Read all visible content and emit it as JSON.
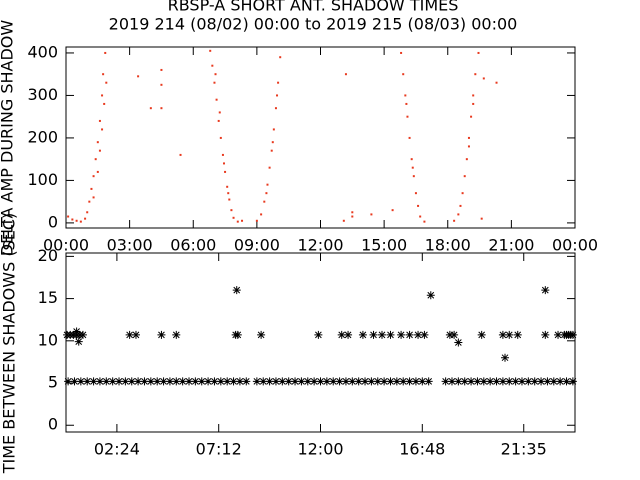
{
  "chart_data": [
    {
      "type": "scatter",
      "title": "RBSP-A SHORT ANT. SHADOW TIMES",
      "subtitle": "2019 214 (08/02) 00:00 to 2019 215 (08/03) 00:00",
      "y_label": "DELTA AMP DURING SHADOW",
      "color": "#e8391e",
      "xlim": [
        0,
        24
      ],
      "ylim": [
        -12,
        414
      ],
      "xticks": [
        {
          "value": 0,
          "label": "00:00"
        },
        {
          "value": 3,
          "label": "03:00"
        },
        {
          "value": 6,
          "label": "06:00"
        },
        {
          "value": 9,
          "label": "09:00"
        },
        {
          "value": 12,
          "label": "12:00"
        },
        {
          "value": 15,
          "label": "15:00"
        },
        {
          "value": 18,
          "label": "18:00"
        },
        {
          "value": 21,
          "label": "21:00"
        },
        {
          "value": 24,
          "label": "00:00"
        }
      ],
      "yticks": [
        0,
        100,
        200,
        300,
        400
      ],
      "x": [
        0.1,
        0.3,
        0.5,
        0.7,
        0.9,
        1.0,
        1.1,
        1.2,
        1.3,
        1.4,
        1.5,
        1.6,
        1.7,
        1.75,
        1.85,
        1.3,
        1.5,
        1.6,
        1.7,
        1.8,
        1.9,
        3.4,
        4.5,
        4.5,
        4.5,
        5.4,
        4.0,
        6.8,
        6.9,
        7.0,
        7.1,
        7.2,
        7.3,
        7.4,
        7.5,
        7.6,
        7.7,
        7.8,
        7.9,
        8.1,
        8.3,
        7.05,
        7.25,
        7.45,
        7.65,
        9.0,
        9.2,
        9.35,
        9.5,
        9.6,
        9.7,
        9.8,
        9.9,
        10.0,
        10.1,
        9.45,
        9.75,
        9.95,
        13.5,
        13.5,
        14.4,
        15.4,
        13.2,
        13.1,
        15.8,
        15.9,
        16.0,
        16.1,
        16.2,
        16.3,
        16.4,
        16.5,
        16.6,
        16.7,
        16.9,
        16.05,
        16.35,
        18.3,
        18.5,
        18.6,
        18.7,
        18.8,
        18.9,
        19.0,
        19.1,
        19.2,
        19.3,
        19.45,
        19.0,
        19.2,
        19.6,
        19.7,
        20.3
      ],
      "values": [
        15,
        8,
        5,
        3,
        10,
        25,
        50,
        80,
        110,
        150,
        190,
        240,
        300,
        350,
        400,
        60,
        120,
        170,
        220,
        280,
        330,
        345,
        360,
        325,
        270,
        160,
        270,
        405,
        370,
        330,
        290,
        240,
        200,
        160,
        120,
        85,
        55,
        30,
        12,
        3,
        5,
        350,
        260,
        140,
        70,
        5,
        20,
        50,
        90,
        130,
        170,
        220,
        270,
        330,
        390,
        70,
        190,
        300,
        15,
        25,
        20,
        30,
        350,
        5,
        400,
        350,
        300,
        250,
        200,
        150,
        110,
        70,
        40,
        15,
        3,
        280,
        130,
        5,
        20,
        40,
        70,
        110,
        150,
        200,
        250,
        300,
        350,
        400,
        180,
        280,
        10,
        340,
        330
      ]
    },
    {
      "type": "scatter",
      "y_label": "TIME BETWEEN SHADOWS (SEC)",
      "color": "#000000",
      "xlim": [
        0,
        24
      ],
      "ylim": [
        -0.8,
        20.4
      ],
      "xticks": [
        {
          "value": 2.4,
          "label": "02:24"
        },
        {
          "value": 7.2,
          "label": "07:12"
        },
        {
          "value": 12,
          "label": "12:00"
        },
        {
          "value": 16.8,
          "label": "16:48"
        },
        {
          "value": 21.583,
          "label": "21:35"
        }
      ],
      "yticks": [
        0,
        5,
        10,
        15,
        20
      ],
      "x": [
        0.1,
        0.4,
        0.7,
        1.0,
        1.3,
        1.6,
        1.9,
        2.2,
        2.5,
        2.8,
        3.1,
        3.4,
        3.7,
        4.0,
        4.3,
        4.6,
        4.9,
        5.2,
        5.5,
        5.8,
        6.1,
        6.4,
        6.7,
        7.0,
        7.3,
        7.6,
        7.9,
        8.2,
        8.5,
        9.0,
        9.3,
        9.6,
        9.9,
        10.2,
        10.5,
        10.8,
        11.1,
        11.4,
        11.7,
        12.0,
        12.3,
        12.6,
        12.9,
        13.2,
        13.5,
        13.8,
        14.1,
        14.4,
        14.7,
        15.0,
        15.3,
        15.6,
        15.9,
        16.2,
        16.5,
        16.8,
        17.1,
        17.9,
        18.2,
        18.5,
        18.8,
        19.1,
        19.4,
        19.7,
        20.0,
        20.3,
        20.6,
        20.9,
        21.2,
        21.5,
        21.8,
        22.1,
        22.4,
        22.7,
        23.0,
        23.3,
        23.6,
        23.9,
        0.05,
        0.2,
        0.35,
        0.5,
        0.65,
        0.8,
        3.0,
        3.3,
        4.5,
        5.2,
        8.0,
        8.1,
        9.2,
        11.9,
        13.0,
        13.3,
        14.0,
        14.5,
        14.9,
        15.3,
        15.8,
        16.2,
        16.6,
        16.9,
        18.1,
        18.3,
        19.6,
        20.6,
        20.9,
        21.3,
        22.6,
        23.2,
        23.5,
        23.6,
        23.7,
        23.8,
        23.9,
        0.6,
        18.5,
        20.7,
        8.05,
        17.2,
        22.6,
        0.5
      ],
      "values": [
        5.2,
        5.2,
        5.2,
        5.2,
        5.2,
        5.2,
        5.2,
        5.2,
        5.2,
        5.2,
        5.2,
        5.2,
        5.2,
        5.2,
        5.2,
        5.2,
        5.2,
        5.2,
        5.2,
        5.2,
        5.2,
        5.2,
        5.2,
        5.2,
        5.2,
        5.2,
        5.2,
        5.2,
        5.2,
        5.2,
        5.2,
        5.2,
        5.2,
        5.2,
        5.2,
        5.2,
        5.2,
        5.2,
        5.2,
        5.2,
        5.2,
        5.2,
        5.2,
        5.2,
        5.2,
        5.2,
        5.2,
        5.2,
        5.2,
        5.2,
        5.2,
        5.2,
        5.2,
        5.2,
        5.2,
        5.2,
        5.2,
        5.2,
        5.2,
        5.2,
        5.2,
        5.2,
        5.2,
        5.2,
        5.2,
        5.2,
        5.2,
        5.2,
        5.2,
        5.2,
        5.2,
        5.2,
        5.2,
        5.2,
        5.2,
        5.2,
        5.2,
        5.2,
        10.7,
        10.7,
        10.7,
        10.7,
        10.7,
        10.7,
        10.7,
        10.7,
        10.7,
        10.7,
        10.7,
        10.7,
        10.7,
        10.7,
        10.7,
        10.7,
        10.7,
        10.7,
        10.7,
        10.7,
        10.7,
        10.7,
        10.7,
        10.7,
        10.7,
        10.7,
        10.7,
        10.7,
        10.7,
        10.7,
        10.7,
        10.7,
        10.7,
        10.7,
        10.7,
        10.7,
        10.7,
        9.9,
        9.8,
        8.0,
        16.0,
        15.4,
        16.0,
        11.1
      ]
    }
  ]
}
